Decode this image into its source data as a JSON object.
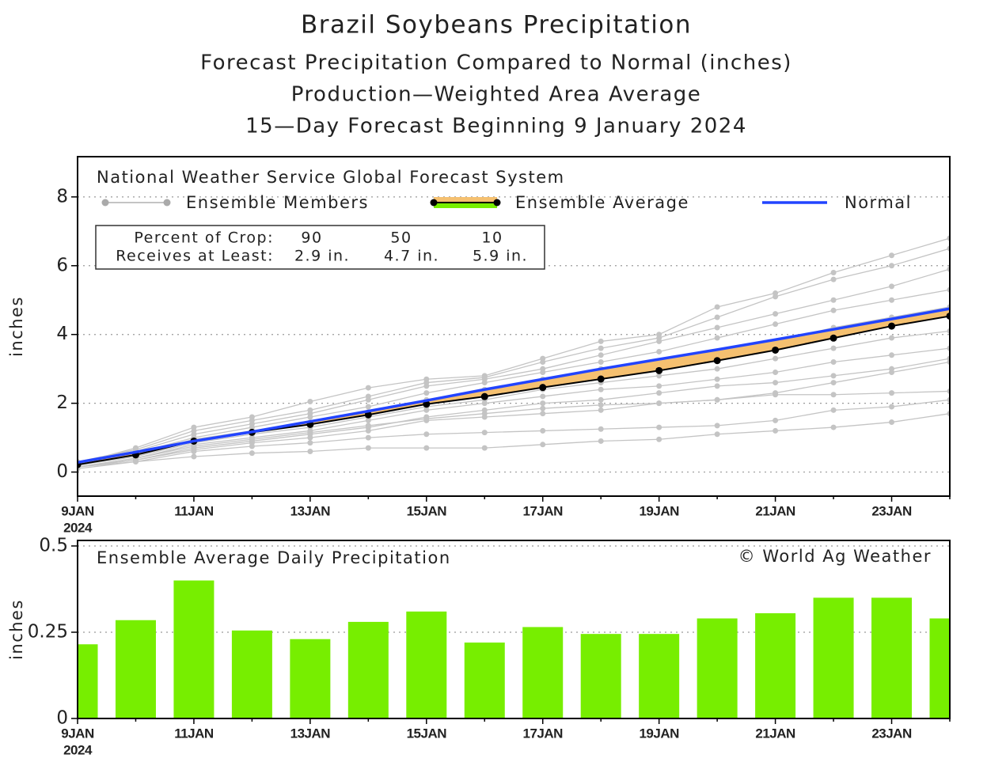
{
  "chart_data": [
    {
      "type": "line",
      "title": "Brazil Soybeans Precipitation",
      "subtitle": [
        "Forecast Precipitation Compared to Normal (inches)",
        "Production—Weighted Area Average",
        "15—Day Forecast Beginning 9 January 2024"
      ],
      "annotation": "National Weather Service Global Forecast System",
      "table": {
        "rows": [
          [
            "Percent of Crop:",
            90,
            50,
            10
          ],
          [
            "Receives at Least:",
            "2.9 in.",
            "4.7 in.",
            "5.9 in."
          ]
        ]
      },
      "ylabel": "inches",
      "categories": [
        "9JAN",
        null,
        "11JAN",
        null,
        "13JAN",
        null,
        "15JAN",
        null,
        "17JAN",
        null,
        "19JAN",
        null,
        "21JAN",
        null,
        "23JAN",
        null
      ],
      "year_label": "2024",
      "ylim": [
        -0.7,
        9.17
      ],
      "yticks": [
        0,
        2,
        4,
        6,
        8
      ],
      "grid": true,
      "deficit_color": "#f5c070",
      "surplus_color": "#77ee00",
      "members": {
        "name": "Ensemble Members",
        "color": "#c4c4c4",
        "values": [
          [
            0.25,
            0.7,
            1.3,
            1.6,
            2.05,
            2.45,
            2.7,
            2.8,
            3.3,
            3.8,
            4.0,
            4.8,
            5.2,
            5.8,
            6.3,
            6.8
          ],
          [
            0.3,
            0.65,
            1.2,
            1.5,
            1.8,
            2.2,
            2.6,
            2.75,
            3.2,
            3.6,
            3.9,
            4.5,
            5.1,
            5.6,
            6.0,
            6.5
          ],
          [
            0.25,
            0.6,
            1.1,
            1.4,
            1.7,
            2.1,
            2.5,
            2.7,
            3.0,
            3.4,
            3.8,
            4.2,
            4.6,
            5.0,
            5.4,
            5.9
          ],
          [
            0.2,
            0.55,
            1.0,
            1.3,
            1.6,
            1.9,
            2.3,
            2.6,
            2.9,
            3.2,
            3.5,
            3.9,
            4.3,
            4.7,
            5.0,
            5.3
          ],
          [
            0.2,
            0.5,
            0.95,
            1.2,
            1.45,
            1.75,
            2.1,
            2.4,
            2.7,
            3.0,
            3.2,
            3.5,
            3.8,
            4.2,
            4.5,
            4.8
          ],
          [
            0.2,
            0.45,
            0.85,
            1.1,
            1.3,
            1.6,
            1.9,
            2.1,
            2.4,
            2.6,
            2.8,
            3.0,
            3.3,
            3.6,
            3.9,
            4.1
          ],
          [
            0.15,
            0.4,
            0.8,
            1.0,
            1.2,
            1.5,
            1.8,
            2.0,
            2.2,
            2.4,
            2.5,
            2.7,
            2.9,
            3.2,
            3.4,
            3.6
          ],
          [
            0.15,
            0.35,
            0.7,
            0.9,
            1.1,
            1.3,
            1.6,
            1.8,
            2.0,
            2.1,
            2.3,
            2.5,
            2.6,
            2.8,
            3.0,
            3.3
          ],
          [
            0.15,
            0.35,
            0.65,
            0.85,
            1.0,
            1.2,
            1.5,
            1.6,
            1.7,
            1.8,
            2.0,
            2.1,
            2.25,
            2.25,
            2.3,
            2.35
          ],
          [
            0.15,
            0.3,
            0.6,
            0.75,
            0.85,
            1.0,
            1.1,
            1.15,
            1.2,
            1.25,
            1.3,
            1.35,
            1.5,
            1.8,
            1.9,
            2.1
          ],
          [
            0.1,
            0.3,
            0.45,
            0.55,
            0.6,
            0.7,
            0.7,
            0.7,
            0.8,
            0.9,
            0.95,
            1.1,
            1.2,
            1.3,
            1.45,
            1.7
          ],
          [
            0.15,
            0.4,
            0.75,
            0.95,
            1.15,
            1.35,
            1.55,
            1.7,
            1.85,
            1.95,
            2.0,
            2.1,
            2.3,
            2.6,
            2.9,
            3.2
          ]
        ]
      },
      "series": [
        {
          "name": "Ensemble Average",
          "color": "#000000",
          "values": [
            0.215,
            0.5,
            0.9,
            1.155,
            1.385,
            1.665,
            1.975,
            2.195,
            2.46,
            2.705,
            2.95,
            3.24,
            3.545,
            3.895,
            4.245,
            4.535
          ]
        },
        {
          "name": "Normal",
          "color": "#2244ff",
          "values": [
            0.28,
            0.58,
            0.9,
            1.17,
            1.47,
            1.77,
            2.08,
            2.4,
            2.7,
            3.0,
            3.28,
            3.56,
            3.85,
            4.15,
            4.45,
            4.75
          ]
        }
      ]
    },
    {
      "type": "bar",
      "title": "Ensemble Average Daily Precipitation",
      "annotation": "© World Ag Weather",
      "ylabel": "inches",
      "categories": [
        "9JAN",
        null,
        "11JAN",
        null,
        "13JAN",
        null,
        "15JAN",
        null,
        "17JAN",
        null,
        "19JAN",
        null,
        "21JAN",
        null,
        "23JAN",
        null
      ],
      "year_label": "2024",
      "values": [
        0.215,
        0.285,
        0.4,
        0.255,
        0.23,
        0.28,
        0.31,
        0.22,
        0.265,
        0.245,
        0.245,
        0.29,
        0.305,
        0.35,
        0.35,
        0.29
      ],
      "color": "#77ee00",
      "ylim": [
        0,
        0.516
      ],
      "yticks": [
        0,
        0.25,
        0.5
      ],
      "grid": true
    }
  ]
}
